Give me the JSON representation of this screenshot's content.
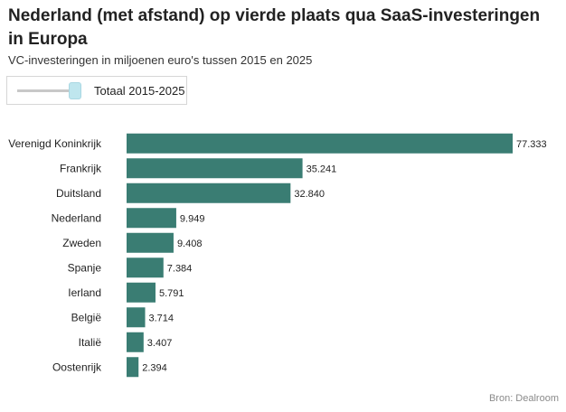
{
  "header": {
    "title": "Nederland (met afstand) op vierde plaats qua SaaS-investeringen in Europa",
    "subtitle": "VC-investeringen in miljoenen euro's tussen 2015 en 2025"
  },
  "control": {
    "label": "Totaal 2015-2025",
    "value": 1.0
  },
  "source": "Bron: Dealroom",
  "colors": {
    "bar": "#3a7d73"
  },
  "chart_data": {
    "type": "bar",
    "orientation": "horizontal",
    "categories": [
      "Verenigd Koninkrijk",
      "Frankrijk",
      "Duitsland",
      "Nederland",
      "Zweden",
      "Spanje",
      "Ierland",
      "België",
      "Italië",
      "Oostenrijk"
    ],
    "values": [
      77333,
      35241,
      32840,
      9949,
      9408,
      7384,
      5791,
      3714,
      3407,
      2394
    ],
    "data_labels": [
      "77.333",
      "35.241",
      "32.840",
      "9.949",
      "9.408",
      "7.384",
      "5.791",
      "3.714",
      "3.407",
      "2.394"
    ],
    "title": "Nederland (met afstand) op vierde plaats qua SaaS-investeringen in Europa",
    "subtitle": "VC-investeringen in miljoenen euro's tussen 2015 en 2025",
    "xlim": [
      0,
      77333
    ],
    "grid": false
  }
}
